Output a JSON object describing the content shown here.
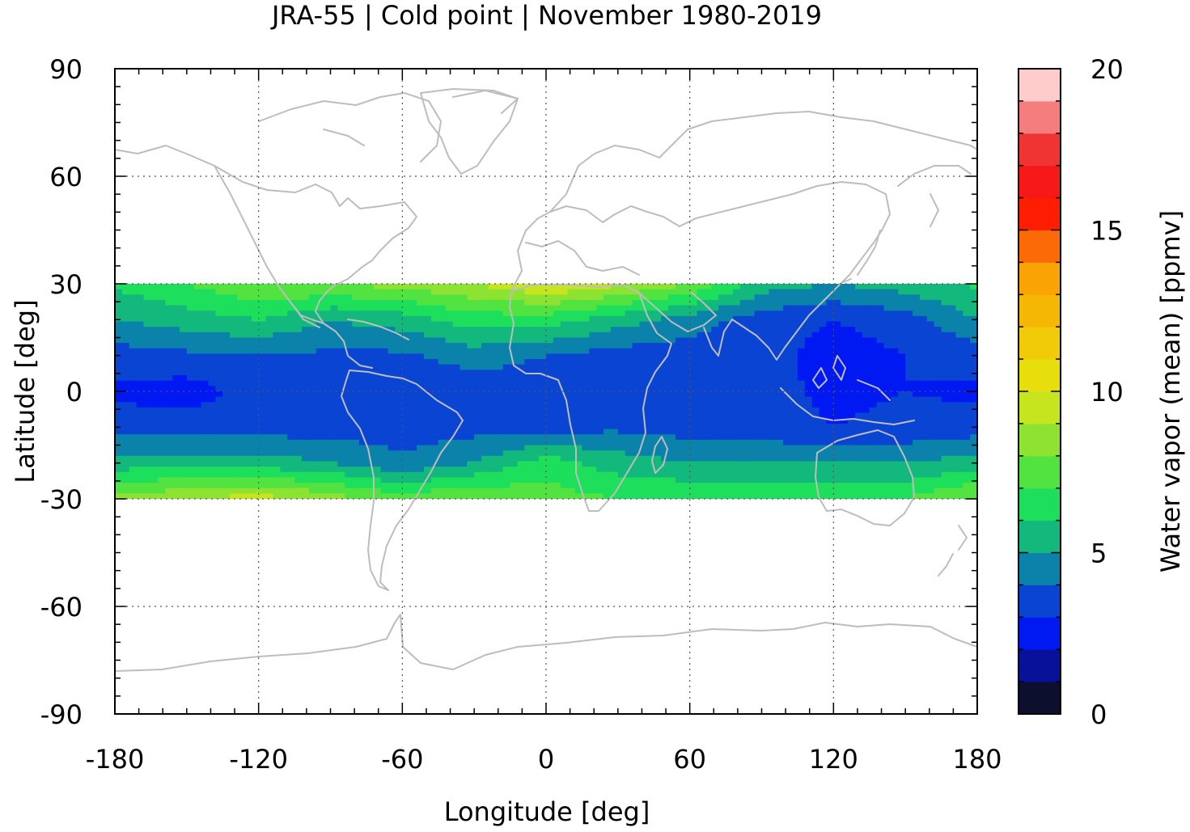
{
  "chart_data": {
    "type": "heatmap",
    "title": "JRA-55 | Cold point | November 1980-2019",
    "xlabel": "Longitude [deg]",
    "ylabel": "Latitude [deg]",
    "colorbar_label": "Water vapor (mean) [ppmv]",
    "xlim": [
      -180,
      180
    ],
    "ylim": [
      -90,
      90
    ],
    "x_ticks": [
      -180,
      -120,
      -60,
      0,
      60,
      120,
      180
    ],
    "y_ticks": [
      90,
      60,
      30,
      0,
      -30,
      -60,
      -90
    ],
    "x_tick_labels": [
      "-180",
      "-120",
      "-60",
      "0",
      "60",
      "120",
      "180"
    ],
    "y_tick_labels": [
      "90",
      "60",
      "30",
      "0",
      "-30",
      "-60",
      "-90"
    ],
    "colorbar_ticks": [
      0,
      5,
      10,
      15,
      20
    ],
    "colorbar_tick_labels": [
      "0",
      "5",
      "10",
      "15",
      "20"
    ],
    "colorbar_range": [
      0,
      20
    ],
    "colorbar_levels": [
      {
        "from": 0,
        "to": 1,
        "color": "#0c0f2e"
      },
      {
        "from": 1,
        "to": 2,
        "color": "#07119a"
      },
      {
        "from": 2,
        "to": 3,
        "color": "#0019f2"
      },
      {
        "from": 3,
        "to": 4,
        "color": "#0a44d2"
      },
      {
        "from": 4,
        "to": 5,
        "color": "#0a82aa"
      },
      {
        "from": 5,
        "to": 6,
        "color": "#12b87c"
      },
      {
        "from": 6,
        "to": 7,
        "color": "#1edf5c"
      },
      {
        "from": 7,
        "to": 8,
        "color": "#52e341"
      },
      {
        "from": 8,
        "to": 9,
        "color": "#8de232"
      },
      {
        "from": 9,
        "to": 10,
        "color": "#c6e51e"
      },
      {
        "from": 10,
        "to": 11,
        "color": "#e8de0c"
      },
      {
        "from": 11,
        "to": 12,
        "color": "#f2cb08"
      },
      {
        "from": 12,
        "to": 13,
        "color": "#f6b604"
      },
      {
        "from": 13,
        "to": 14,
        "color": "#faa304"
      },
      {
        "from": 14,
        "to": 15,
        "color": "#fc6a08"
      },
      {
        "from": 15,
        "to": 16,
        "color": "#ff1e02"
      },
      {
        "from": 16,
        "to": 17,
        "color": "#f71818"
      },
      {
        "from": 17,
        "to": 18,
        "color": "#f03434"
      },
      {
        "from": 18,
        "to": 19,
        "color": "#f57d7d"
      },
      {
        "from": 19,
        "to": 20,
        "color": "#ffcccc"
      }
    ],
    "data_extent": {
      "lat": [
        -30,
        30
      ],
      "lon": [
        -180,
        180
      ]
    },
    "lon_grid": [
      -180,
      -150,
      -120,
      -90,
      -60,
      -30,
      0,
      30,
      60,
      90,
      120,
      150,
      180
    ],
    "lat_grid": [
      30,
      20,
      10,
      0,
      -10,
      -20,
      -30
    ],
    "values": [
      [
        6.2,
        7.0,
        8.0,
        8.0,
        8.4,
        9.0,
        10.0,
        9.2,
        8.0,
        5.5,
        5.0,
        5.5,
        6.2
      ],
      [
        5.0,
        5.5,
        6.0,
        5.0,
        5.5,
        6.5,
        6.5,
        5.5,
        4.5,
        3.5,
        3.0,
        3.5,
        5.0
      ],
      [
        3.5,
        3.8,
        4.0,
        3.8,
        3.8,
        4.5,
        4.0,
        3.5,
        3.5,
        3.5,
        2.5,
        3.0,
        3.5
      ],
      [
        2.8,
        2.5,
        3.5,
        3.2,
        3.0,
        3.3,
        3.4,
        3.5,
        3.5,
        3.3,
        2.8,
        3.0,
        2.8
      ],
      [
        3.5,
        3.5,
        3.5,
        3.5,
        3.5,
        3.6,
        3.6,
        3.8,
        3.5,
        3.4,
        3.0,
        3.2,
        3.5
      ],
      [
        5.5,
        5.5,
        5.5,
        5.0,
        4.2,
        5.0,
        6.5,
        5.5,
        5.0,
        5.0,
        5.0,
        5.0,
        5.5
      ],
      [
        8.2,
        9.0,
        9.5,
        8.5,
        7.5,
        8.0,
        7.5,
        7.0,
        7.0,
        7.0,
        7.0,
        7.0,
        8.2
      ]
    ],
    "grid": "dotted",
    "legend": "colorbar-right"
  }
}
